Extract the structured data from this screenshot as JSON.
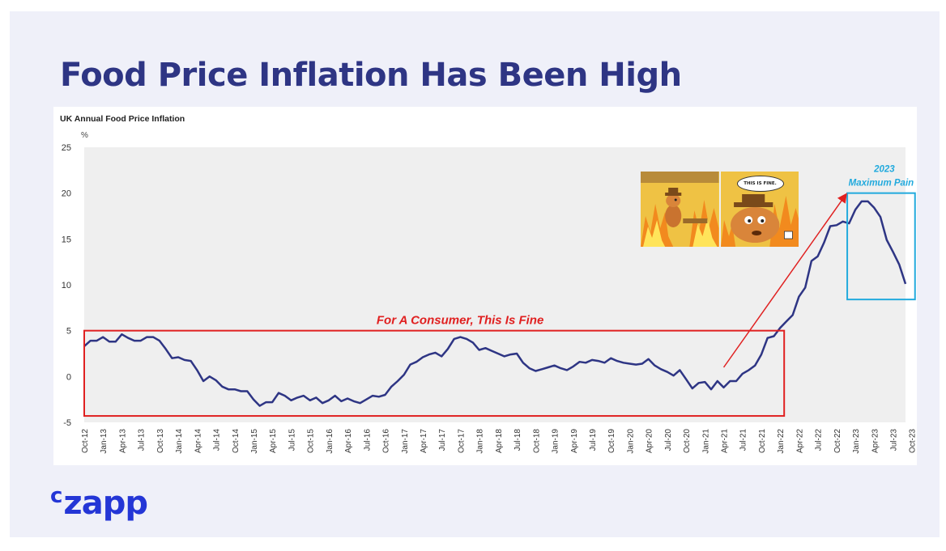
{
  "slide": {
    "title": "Food Price Inflation Has Been High",
    "logo": {
      "prefix": "c",
      "name": "zapp",
      "color": "#2436d6"
    }
  },
  "meme": {
    "bubble_text": "THIS IS FINE."
  },
  "colors": {
    "title": "#2e3584",
    "line": "#2e3584",
    "plot_background": "#efefef",
    "red_annotation": "#e02020",
    "blue_annotation": "#22aadd"
  },
  "chart_data": {
    "type": "line",
    "title": "UK Annual Food Price Inflation",
    "ylabel": "%",
    "ylim": [
      -5,
      25
    ],
    "yticks": [
      -5,
      0,
      5,
      10,
      15,
      20,
      25
    ],
    "grid": false,
    "x_tick_labels": [
      "Oct-12",
      "Jan-13",
      "Apr-13",
      "Jul-13",
      "Oct-13",
      "Jan-14",
      "Apr-14",
      "Jul-14",
      "Oct-14",
      "Jan-15",
      "Apr-15",
      "Jul-15",
      "Oct-15",
      "Jan-16",
      "Apr-16",
      "Jul-16",
      "Oct-16",
      "Jan-17",
      "Apr-17",
      "Jul-17",
      "Oct-17",
      "Jan-18",
      "Apr-18",
      "Jul-18",
      "Oct-18",
      "Jan-19",
      "Apr-19",
      "Jul-19",
      "Oct-19",
      "Jan-20",
      "Apr-20",
      "Jul-20",
      "Oct-20",
      "Jan-21",
      "Apr-21",
      "Jul-21",
      "Oct-21",
      "Jan-22",
      "Apr-22",
      "Jul-22",
      "Oct-22",
      "Jan-23",
      "Apr-23",
      "Jul-23",
      "Oct-23"
    ],
    "series": [
      {
        "values": [
          3.3,
          3.9,
          3.9,
          4.3,
          3.8,
          3.8,
          4.6,
          4.2,
          3.9,
          3.9,
          4.3,
          4.3,
          3.9,
          3.0,
          2.0,
          2.1,
          1.8,
          1.7,
          0.7,
          -0.5,
          0.0,
          -0.4,
          -1.1,
          -1.4,
          -1.4,
          -1.6,
          -1.6,
          -2.5,
          -3.2,
          -2.8,
          -2.8,
          -1.8,
          -2.1,
          -2.6,
          -2.3,
          -2.1,
          -2.6,
          -2.3,
          -2.9,
          -2.6,
          -2.1,
          -2.7,
          -2.4,
          -2.7,
          -2.9,
          -2.5,
          -2.1,
          -2.2,
          -2.0,
          -1.1,
          -0.5,
          0.2,
          1.3,
          1.6,
          2.1,
          2.4,
          2.6,
          2.2,
          3.0,
          4.1,
          4.3,
          4.1,
          3.7,
          2.9,
          3.1,
          2.8,
          2.5,
          2.2,
          2.4,
          2.5,
          1.5,
          0.9,
          0.6,
          0.8,
          1.0,
          1.2,
          0.9,
          0.7,
          1.1,
          1.6,
          1.5,
          1.8,
          1.7,
          1.5,
          2.0,
          1.7,
          1.5,
          1.4,
          1.3,
          1.4,
          1.9,
          1.2,
          0.8,
          0.5,
          0.1,
          0.7,
          -0.3,
          -1.3,
          -0.7,
          -0.6,
          -1.4,
          -0.5,
          -1.2,
          -0.5,
          -0.5,
          0.3,
          0.7,
          1.2,
          2.4,
          4.2,
          4.4,
          5.3,
          6.0,
          6.7,
          8.7,
          9.7,
          12.6,
          13.1,
          14.6,
          16.4,
          16.5,
          16.9,
          16.7,
          18.2,
          19.1,
          19.1,
          18.4,
          17.4,
          14.9,
          13.6,
          12.2,
          10.1
        ]
      }
    ],
    "annotations": [
      {
        "text": "For A Consumer, This Is Fine",
        "color": "#e02020",
        "x_start": "Oct-12",
        "x_end": "Jan-22",
        "y_range": [
          -4.3,
          5
        ]
      },
      {
        "text_line1": "2023",
        "text_line2": "Maximum Pain",
        "color": "#22aadd",
        "x_start": "Jan-23",
        "x_end": "Oct-23",
        "y_range": [
          8.4,
          20
        ]
      }
    ]
  }
}
